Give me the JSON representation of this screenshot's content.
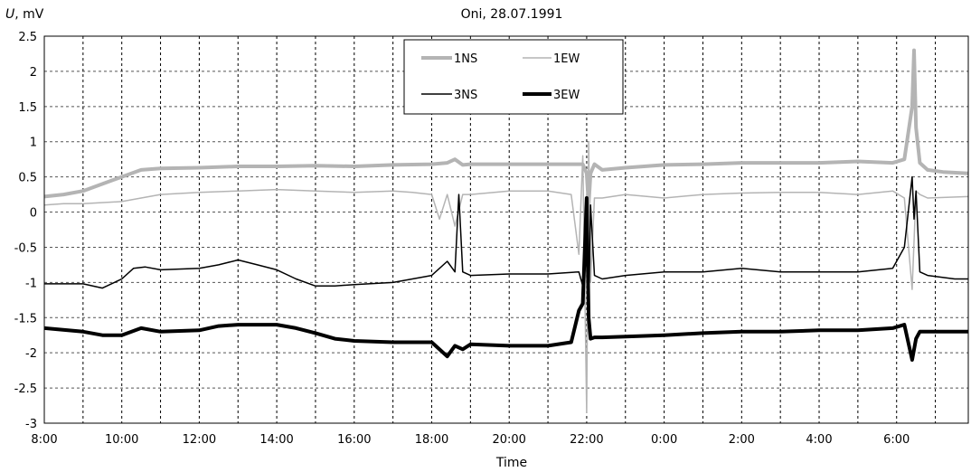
{
  "chart_data": {
    "type": "line",
    "title": "Oni, 28.07.1991",
    "ylabel_symbol": "U",
    "ylabel_unit": ", mV",
    "xlabel": "Time",
    "ylim": [
      -3,
      2.5
    ],
    "yticks": [
      "2.5",
      "2",
      "1.5",
      "1",
      "0.5",
      "0",
      "-0.5",
      "-1",
      "-1.5",
      "-2",
      "-2.5",
      "-3"
    ],
    "xlim_hours": [
      8,
      31.85
    ],
    "xticks": [
      {
        "hour": 8,
        "label": "8:00"
      },
      {
        "hour": 10,
        "label": "10:00"
      },
      {
        "hour": 12,
        "label": "12:00"
      },
      {
        "hour": 14,
        "label": "14:00"
      },
      {
        "hour": 16,
        "label": "16:00"
      },
      {
        "hour": 18,
        "label": "18:00"
      },
      {
        "hour": 20,
        "label": "20:00"
      },
      {
        "hour": 22,
        "label": "22:00"
      },
      {
        "hour": 24,
        "label": "0:00"
      },
      {
        "hour": 26,
        "label": "2:00"
      },
      {
        "hour": 28,
        "label": "4:00"
      },
      {
        "hour": 30,
        "label": "6:00"
      }
    ],
    "grid": true,
    "legend_position": "top-center",
    "series": [
      {
        "name": "1NS",
        "color": "#b4b4b4",
        "width": 4,
        "x": [
          8,
          8.5,
          9,
          9.5,
          10,
          10.5,
          11,
          12,
          13,
          14,
          15,
          16,
          17,
          18,
          18.4,
          18.6,
          18.8,
          19,
          20,
          21,
          21.9,
          22.0,
          22.05,
          22.1,
          22.2,
          22.4,
          23,
          24,
          25,
          26,
          27,
          28,
          29,
          29.9,
          30.2,
          30.4,
          30.45,
          30.5,
          30.6,
          30.8,
          31.2,
          31.85
        ],
        "y": [
          0.22,
          0.25,
          0.3,
          0.4,
          0.5,
          0.6,
          0.62,
          0.63,
          0.65,
          0.65,
          0.66,
          0.65,
          0.67,
          0.68,
          0.7,
          0.75,
          0.67,
          0.68,
          0.68,
          0.68,
          0.68,
          0.55,
          0.1,
          0.55,
          0.68,
          0.6,
          0.63,
          0.67,
          0.68,
          0.7,
          0.7,
          0.7,
          0.72,
          0.7,
          0.75,
          1.5,
          2.3,
          1.2,
          0.7,
          0.6,
          0.57,
          0.55
        ]
      },
      {
        "name": "1EW",
        "color": "#b4b4b4",
        "width": 1.5,
        "x": [
          8,
          8.5,
          9,
          10,
          10.5,
          11,
          12,
          13,
          14,
          15,
          16,
          17,
          17.5,
          18,
          18.2,
          18.4,
          18.6,
          18.8,
          19,
          20,
          21,
          21.6,
          21.8,
          21.9,
          22.0,
          22.05,
          22.1,
          22.2,
          22.4,
          23,
          24,
          25,
          26,
          27,
          28,
          29,
          29.9,
          30.2,
          30.4,
          30.5,
          30.6,
          30.8,
          31.85
        ],
        "y": [
          0.1,
          0.12,
          0.12,
          0.15,
          0.2,
          0.25,
          0.28,
          0.3,
          0.32,
          0.3,
          0.28,
          0.3,
          0.28,
          0.25,
          -0.1,
          0.25,
          -0.2,
          0.25,
          0.25,
          0.3,
          0.3,
          0.25,
          -0.6,
          0.8,
          -2.85,
          1.0,
          -1.0,
          0.2,
          0.2,
          0.25,
          0.2,
          0.25,
          0.27,
          0.28,
          0.28,
          0.25,
          0.3,
          0.2,
          -1.1,
          0.3,
          0.25,
          0.2,
          0.22
        ]
      },
      {
        "name": "3NS",
        "color": "#000000",
        "width": 1.5,
        "x": [
          8,
          9,
          9.5,
          10,
          10.3,
          10.6,
          11,
          12,
          12.5,
          13,
          13.5,
          14,
          14.5,
          15,
          15.5,
          16,
          17,
          18,
          18.4,
          18.6,
          18.7,
          18.8,
          19,
          20,
          21,
          21.8,
          21.9,
          22.0,
          22.05,
          22.1,
          22.2,
          22.4,
          23,
          24,
          25,
          26,
          27,
          28,
          29,
          29.9,
          30.2,
          30.4,
          30.45,
          30.5,
          30.6,
          30.8,
          31.5,
          31.85
        ],
        "y": [
          -1.02,
          -1.02,
          -1.08,
          -0.95,
          -0.8,
          -0.78,
          -0.82,
          -0.8,
          -0.75,
          -0.68,
          -0.75,
          -0.82,
          -0.95,
          -1.05,
          -1.05,
          -1.03,
          -1.0,
          -0.9,
          -0.7,
          -0.85,
          0.25,
          -0.85,
          -0.9,
          -0.88,
          -0.88,
          -0.85,
          -1.05,
          0.2,
          -1.5,
          0.1,
          -0.9,
          -0.95,
          -0.9,
          -0.85,
          -0.85,
          -0.8,
          -0.85,
          -0.85,
          -0.85,
          -0.8,
          -0.5,
          0.5,
          -0.1,
          0.3,
          -0.85,
          -0.9,
          -0.95,
          -0.95
        ]
      },
      {
        "name": "3EW",
        "color": "#000000",
        "width": 4,
        "x": [
          8,
          9,
          9.5,
          10,
          10.5,
          11,
          12,
          12.5,
          13,
          14,
          14.5,
          15,
          15.5,
          16,
          17,
          18,
          18.4,
          18.6,
          18.8,
          19,
          20,
          21,
          21.6,
          21.8,
          21.9,
          22.0,
          22.05,
          22.1,
          22.2,
          22.4,
          23,
          24,
          25,
          26,
          27,
          28,
          29,
          29.9,
          30.2,
          30.4,
          30.5,
          30.6,
          30.8,
          31.85
        ],
        "y": [
          -1.65,
          -1.7,
          -1.75,
          -1.75,
          -1.65,
          -1.7,
          -1.68,
          -1.62,
          -1.6,
          -1.6,
          -1.65,
          -1.72,
          -1.8,
          -1.83,
          -1.85,
          -1.85,
          -2.05,
          -1.9,
          -1.95,
          -1.88,
          -1.9,
          -1.9,
          -1.85,
          -1.4,
          -1.3,
          0.2,
          -1.5,
          -1.8,
          -1.78,
          -1.78,
          -1.77,
          -1.75,
          -1.72,
          -1.7,
          -1.7,
          -1.68,
          -1.68,
          -1.65,
          -1.6,
          -2.1,
          -1.8,
          -1.7,
          -1.7,
          -1.7
        ]
      }
    ]
  }
}
